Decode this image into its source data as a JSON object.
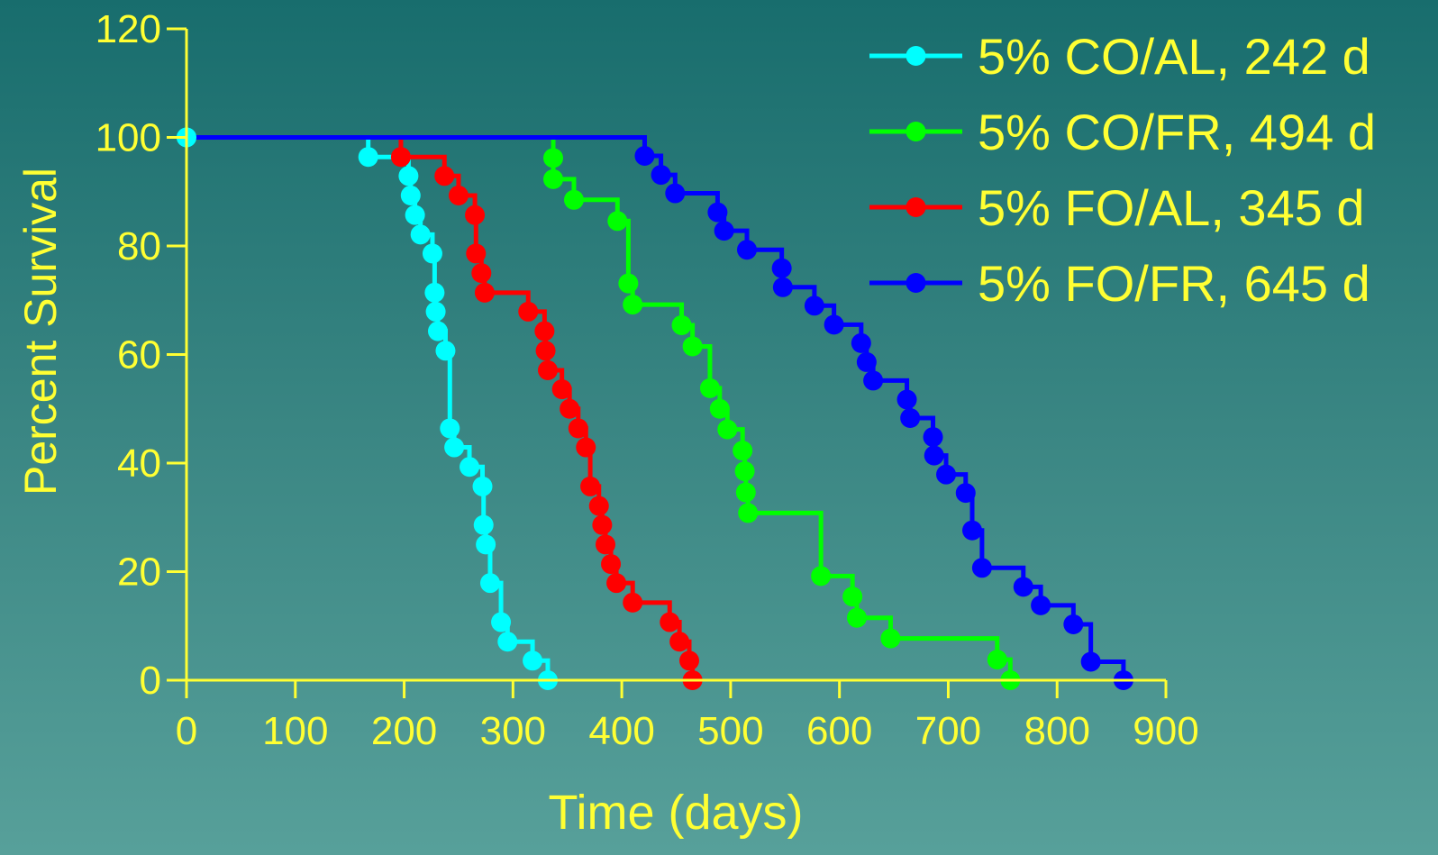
{
  "chart_data": {
    "type": "line",
    "subtype": "kaplan-meier step survival curves",
    "xlabel": "Time (days)",
    "ylabel": "Percent Survival",
    "xlim": [
      0,
      900
    ],
    "ylim": [
      0,
      120
    ],
    "xticks": [
      0,
      100,
      200,
      300,
      400,
      500,
      600,
      700,
      800,
      900
    ],
    "yticks": [
      0,
      20,
      40,
      60,
      80,
      100,
      120
    ],
    "grid": false,
    "legend_position": "top-right",
    "colors": {
      "axis": "#ffff33",
      "text": "#ffff33"
    },
    "series": [
      {
        "name": "5% CO/AL, 242 d",
        "color": "#00ffff",
        "points": [
          [
            0,
            100
          ],
          [
            167,
            96.4
          ],
          [
            204,
            92.9
          ],
          [
            206,
            89.3
          ],
          [
            210,
            85.7
          ],
          [
            215,
            82.1
          ],
          [
            226,
            78.6
          ],
          [
            228,
            71.4
          ],
          [
            229,
            67.9
          ],
          [
            231,
            64.3
          ],
          [
            238,
            60.7
          ],
          [
            242,
            46.4
          ],
          [
            246,
            42.9
          ],
          [
            260,
            39.3
          ],
          [
            272,
            35.7
          ],
          [
            273,
            28.6
          ],
          [
            275,
            25
          ],
          [
            279,
            17.9
          ],
          [
            289,
            10.7
          ],
          [
            295,
            7.1
          ],
          [
            318,
            3.6
          ],
          [
            332,
            0
          ]
        ]
      },
      {
        "name": "5% CO/FR, 494 d",
        "color": "#00ff00",
        "points": [
          [
            337,
            96.2
          ],
          [
            337,
            92.3
          ],
          [
            356,
            88.5
          ],
          [
            396,
            84.6
          ],
          [
            406,
            73.1
          ],
          [
            410,
            69.2
          ],
          [
            455,
            65.4
          ],
          [
            465,
            61.5
          ],
          [
            481,
            53.8
          ],
          [
            490,
            50
          ],
          [
            497,
            46.2
          ],
          [
            511,
            42.3
          ],
          [
            513,
            38.5
          ],
          [
            514,
            34.6
          ],
          [
            516,
            30.8
          ],
          [
            583,
            19.2
          ],
          [
            612,
            15.4
          ],
          [
            616,
            11.5
          ],
          [
            647,
            7.7
          ],
          [
            745,
            3.8
          ],
          [
            757,
            0
          ]
        ]
      },
      {
        "name": "5% FO/AL, 345 d",
        "color": "#ff0000",
        "points": [
          [
            197,
            96.4
          ],
          [
            237,
            92.9
          ],
          [
            250,
            89.3
          ],
          [
            265,
            85.7
          ],
          [
            266,
            78.6
          ],
          [
            271,
            75
          ],
          [
            274,
            71.4
          ],
          [
            314,
            67.9
          ],
          [
            329,
            64.3
          ],
          [
            330,
            60.7
          ],
          [
            332,
            57.1
          ],
          [
            345,
            53.6
          ],
          [
            352,
            50
          ],
          [
            360,
            46.4
          ],
          [
            367,
            42.9
          ],
          [
            371,
            35.7
          ],
          [
            379,
            32.1
          ],
          [
            382,
            28.6
          ],
          [
            385,
            25
          ],
          [
            390,
            21.4
          ],
          [
            395,
            17.9
          ],
          [
            410,
            14.3
          ],
          [
            444,
            10.7
          ],
          [
            453,
            7.1
          ],
          [
            462,
            3.6
          ],
          [
            465,
            0
          ]
        ]
      },
      {
        "name": "5% FO/FR, 645 d",
        "color": "#0000ff",
        "points": [
          [
            421,
            96.6
          ],
          [
            436,
            93.1
          ],
          [
            449,
            89.7
          ],
          [
            488,
            86.2
          ],
          [
            494,
            82.8
          ],
          [
            515,
            79.3
          ],
          [
            547,
            75.9
          ],
          [
            548,
            72.4
          ],
          [
            577,
            69
          ],
          [
            595,
            65.5
          ],
          [
            620,
            62.1
          ],
          [
            625,
            58.6
          ],
          [
            631,
            55.2
          ],
          [
            662,
            51.7
          ],
          [
            665,
            48.3
          ],
          [
            686,
            44.8
          ],
          [
            687,
            41.4
          ],
          [
            698,
            37.9
          ],
          [
            716,
            34.5
          ],
          [
            722,
            27.6
          ],
          [
            731,
            20.7
          ],
          [
            769,
            17.2
          ],
          [
            785,
            13.8
          ],
          [
            815,
            10.3
          ],
          [
            831,
            3.4
          ],
          [
            861,
            0
          ]
        ]
      }
    ]
  }
}
